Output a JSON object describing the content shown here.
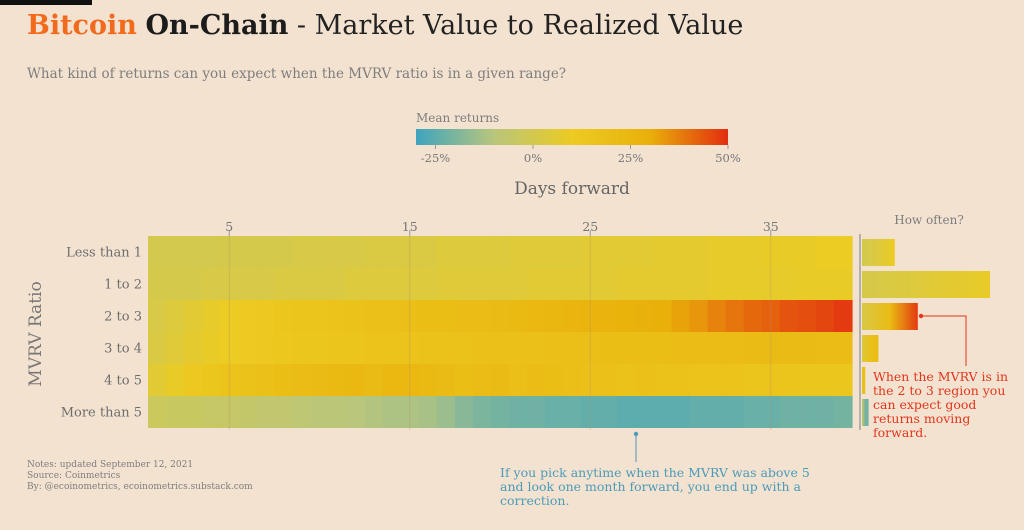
{
  "title": {
    "part1": "Bitcoin",
    "part2": "On-Chain",
    "part3": " - Market Value to Realized Value"
  },
  "subtitle": "What kind of returns can you expect when the MVRV ratio is in a given range?",
  "notes": [
    "Notes: updated September 12, 2021",
    "Source: Coinmetrics",
    "By: @ecoinometrics, ecoinometrics.substack.com"
  ],
  "annotations": {
    "red": "When the MVRV is in the 2 to 3 region you can expect good returns moving forward.",
    "blue": "If you pick anytime when the MVRV was above 5 and look one month forward, you end up with a correction."
  },
  "colors": {
    "orange": "#f26b1d",
    "annotation_red": "#e2361d",
    "annotation_blue": "#4b9bb9",
    "background": "#f3e2d0"
  },
  "chart_data": {
    "type": "heatmap",
    "xlabel": "Days forward",
    "ylabel": "MVRV Ratio",
    "x_ticks": [
      5,
      15,
      25,
      35
    ],
    "x_range": [
      1,
      39
    ],
    "y_categories": [
      "Less than 1",
      "1 to 2",
      "2 to 3",
      "3 to 4",
      "4 to 5",
      "More than 5"
    ],
    "colorbar": {
      "title": "Mean returns",
      "ticks": [
        "-25%",
        "0%",
        "25%",
        "50%"
      ],
      "range": [
        -30,
        50
      ],
      "stops": [
        "#3ea4bf",
        "#b9c67c",
        "#eccb22",
        "#e9b00a",
        "#e22d10"
      ]
    },
    "values": [
      [
        0,
        0,
        0,
        0,
        1,
        1,
        1,
        1,
        2,
        2,
        2,
        2,
        3,
        3,
        3,
        3,
        4,
        4,
        4,
        4,
        5,
        5,
        5,
        5,
        6,
        6,
        6,
        6,
        7,
        7,
        7,
        8,
        8,
        8,
        9,
        9,
        9,
        10,
        10
      ],
      [
        1,
        1,
        1,
        2,
        2,
        2,
        2,
        3,
        3,
        3,
        3,
        4,
        4,
        4,
        4,
        4,
        5,
        5,
        5,
        5,
        5,
        6,
        6,
        6,
        6,
        6,
        7,
        7,
        7,
        7,
        7,
        8,
        8,
        8,
        8,
        8,
        9,
        9,
        9
      ],
      [
        2,
        4,
        6,
        8,
        10,
        11,
        12,
        14,
        15,
        15,
        16,
        17,
        18,
        18,
        19,
        20,
        20,
        21,
        21,
        22,
        23,
        24,
        25,
        26,
        27,
        27,
        28,
        29,
        30,
        32,
        34,
        37,
        39,
        41,
        42,
        44,
        45,
        46,
        48
      ],
      [
        3,
        5,
        7,
        9,
        10,
        11,
        12,
        13,
        14,
        14,
        15,
        15,
        16,
        16,
        16,
        17,
        17,
        17,
        18,
        18,
        18,
        18,
        19,
        19,
        19,
        20,
        20,
        20,
        20,
        21,
        21,
        21,
        21,
        22,
        22,
        22,
        22,
        21,
        21
      ],
      [
        6,
        9,
        12,
        14,
        16,
        17,
        18,
        20,
        21,
        22,
        23,
        24,
        22,
        24,
        24,
        23,
        22,
        20,
        21,
        22,
        19,
        21,
        20,
        19,
        18,
        18,
        17,
        18,
        17,
        17,
        16,
        16,
        16,
        15,
        15,
        15,
        14,
        14,
        14
      ],
      [
        -3,
        -4,
        -4,
        -5,
        -5,
        -6,
        -7,
        -7,
        -8,
        -9,
        -9,
        -10,
        -11,
        -12,
        -12,
        -13,
        -15,
        -18,
        -20,
        -21,
        -22,
        -22,
        -23,
        -23,
        -24,
        -24,
        -25,
        -25,
        -25,
        -25,
        -24,
        -24,
        -24,
        -23,
        -23,
        -22,
        -22,
        -22,
        -21
      ]
    ],
    "how_often": {
      "label": "How often?",
      "values": [
        10,
        39,
        17,
        5,
        1,
        2
      ]
    }
  }
}
